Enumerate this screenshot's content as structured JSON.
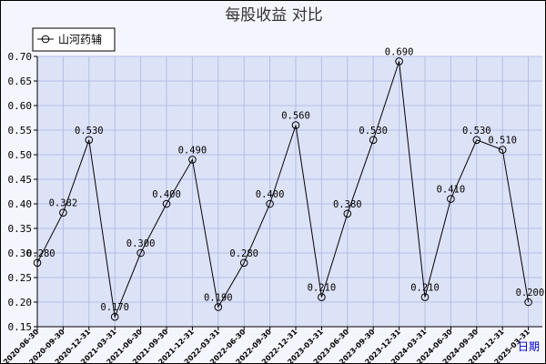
{
  "chart_data": {
    "type": "line",
    "title": "每股收益  对比",
    "xlabel": "日期",
    "ylabel": "",
    "ylim": [
      0.15,
      0.7
    ],
    "yticks": [
      "0.15",
      "0.20",
      "0.25",
      "0.30",
      "0.35",
      "0.40",
      "0.45",
      "0.50",
      "0.55",
      "0.60",
      "0.65",
      "0.70"
    ],
    "grid": true,
    "legend_position": "top-left",
    "categories": [
      "2020-06-30",
      "2020-09-30",
      "2020-12-31",
      "2021-03-31",
      "2021-06-30",
      "2021-09-30",
      "2021-12-31",
      "2022-03-31",
      "2022-06-30",
      "2022-09-30",
      "2022-12-31",
      "2023-03-31",
      "2023-06-30",
      "2023-09-30",
      "2023-12-31",
      "2024-03-31",
      "2024-06-30",
      "2024-09-30",
      "2024-12-31",
      "2025-03-31"
    ],
    "series": [
      {
        "name": "山河药辅",
        "values": [
          0.28,
          0.382,
          0.53,
          0.17,
          0.3,
          0.4,
          0.49,
          0.19,
          0.28,
          0.4,
          0.56,
          0.21,
          0.38,
          0.53,
          0.69,
          0.21,
          0.41,
          0.53,
          0.51,
          0.2
        ],
        "labels": [
          "0.280",
          "0.382",
          "0.530",
          "0.170",
          "0.300",
          "0.400",
          "0.490",
          "0.190",
          "0.280",
          "0.400",
          "0.560",
          "0.210",
          "0.380",
          "0.530",
          "0.690",
          "0.210",
          "0.410",
          "0.530",
          "0.510",
          "0.200"
        ]
      }
    ],
    "colors": {
      "plot_bg": "#dde3f7",
      "grid": "#b4bde6",
      "line": "#000000",
      "frame_bg": "#f5f5fd"
    }
  }
}
